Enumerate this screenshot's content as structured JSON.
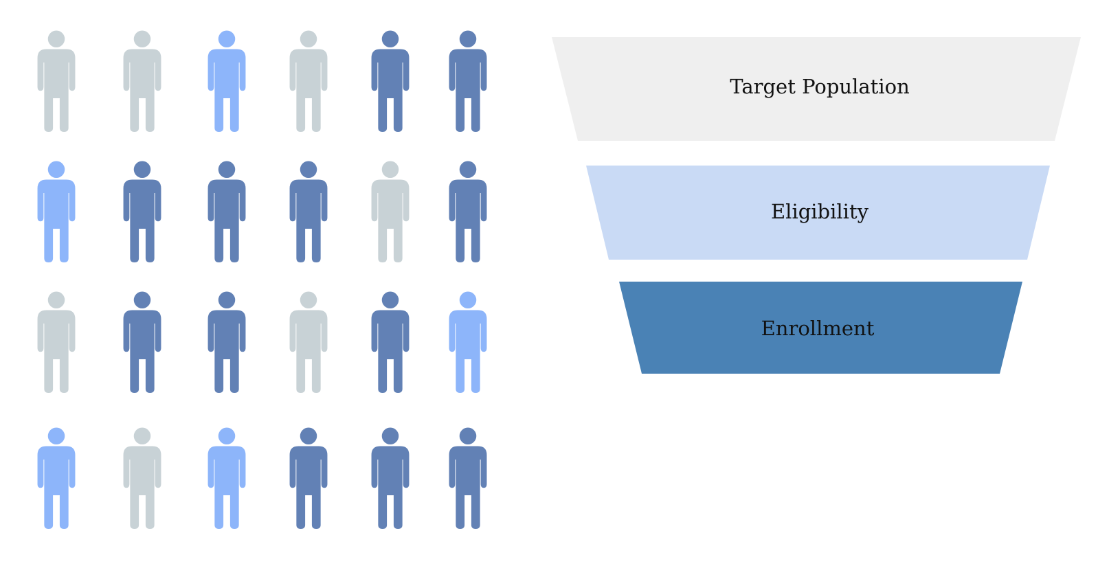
{
  "people": {
    "colors": {
      "gray": "#c8d2d6",
      "light_blue": "#8db5fa",
      "dark_blue": "#6281b5"
    },
    "icon": "person-icon",
    "rows": [
      [
        "gray",
        "gray",
        "light_blue",
        "gray",
        "dark_blue",
        "dark_blue"
      ],
      [
        "light_blue",
        "dark_blue",
        "dark_blue",
        "dark_blue",
        "gray",
        "dark_blue"
      ],
      [
        "gray",
        "dark_blue",
        "dark_blue",
        "gray",
        "dark_blue",
        "light_blue"
      ],
      [
        "light_blue",
        "gray",
        "light_blue",
        "dark_blue",
        "dark_blue",
        "dark_blue"
      ]
    ]
  },
  "funnel": {
    "stages": [
      {
        "label": "Target Population",
        "color": "#efefef"
      },
      {
        "label": "Eligibility",
        "color": "#c9daf5"
      },
      {
        "label": "Enrollment",
        "color": "#4a82b5"
      }
    ]
  }
}
